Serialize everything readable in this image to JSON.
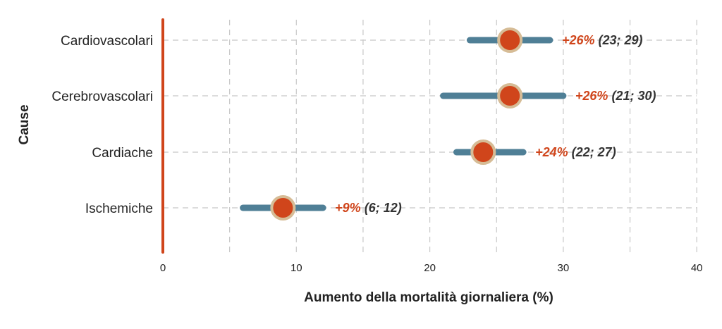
{
  "chart_data": {
    "type": "scatter",
    "subtype": "point-range",
    "xlabel": "Aumento della mortalità giornaliera (%)",
    "ylabel": "Cause",
    "xlim": [
      0,
      40
    ],
    "xticks": [
      0,
      10,
      20,
      30,
      40
    ],
    "xtick_labels": [
      "0",
      "10",
      "20",
      "30",
      "40"
    ],
    "grid": true,
    "reference_line_x": 0,
    "categories": [
      "Cardiovascolari",
      "Cerebrovascolari",
      "Cardiache",
      "Ischemiche"
    ],
    "points": [
      {
        "category": "Cardiovascolari",
        "estimate": 26,
        "low": 23,
        "high": 29,
        "label_pct": "+26%",
        "label_ci": "(23; 29)"
      },
      {
        "category": "Cerebrovascolari",
        "estimate": 26,
        "low": 21,
        "high": 30,
        "label_pct": "+26%",
        "label_ci": "(21; 30)"
      },
      {
        "category": "Cardiache",
        "estimate": 24,
        "low": 22,
        "high": 27,
        "label_pct": "+24%",
        "label_ci": "(22; 27)"
      },
      {
        "category": "Ischemiche",
        "estimate": 9,
        "low": 6,
        "high": 12,
        "label_pct": "+9%",
        "label_ci": "(6; 12)"
      }
    ],
    "colors": {
      "point": "#d0451b",
      "point_ring": "#d6bc96",
      "interval": "#4f7f96",
      "reference_line": "#d0451b",
      "pct_label": "#d0451b",
      "ci_label": "#333333",
      "grid": "#c8c8c8"
    }
  }
}
